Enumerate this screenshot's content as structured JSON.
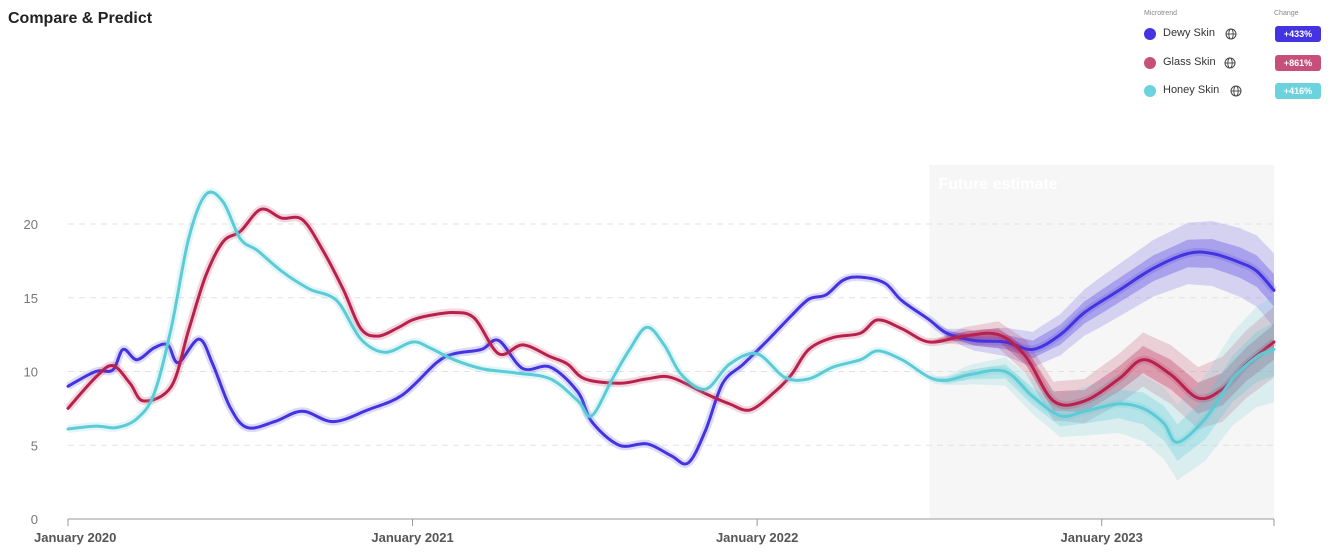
{
  "header": {
    "title": "Compare & Predict"
  },
  "legend": {
    "microtrend_heading": "Microtrend",
    "change_heading": "Change",
    "items": [
      {
        "name": "Dewy Skin",
        "change": "+433%",
        "color": "#4433e0",
        "icon": "globe-icon"
      },
      {
        "name": "Glass Skin",
        "change": "+861%",
        "color": "#c7507a",
        "icon": "globe-icon"
      },
      {
        "name": "Honey Skin",
        "change": "+416%",
        "color": "#6ad3dd",
        "icon": "globe-icon"
      }
    ]
  },
  "chart_data": {
    "type": "line",
    "title": "",
    "xlabel": "",
    "ylabel": "",
    "ylim": [
      0,
      23
    ],
    "xlim": [
      2020.0,
      2023.5
    ],
    "y_ticks": [
      0,
      5,
      10,
      15,
      20
    ],
    "x_ticks": [
      {
        "value": 2020.0,
        "label": "January 2020"
      },
      {
        "value": 2021.0,
        "label": "January 2021"
      },
      {
        "value": 2022.0,
        "label": "January 2022"
      },
      {
        "value": 2023.0,
        "label": "January 2023"
      }
    ],
    "grid": "horizontal-dashed",
    "future_region": {
      "start": 2022.5,
      "label": "Future estimate"
    },
    "series": [
      {
        "name": "Dewy Skin",
        "color": "#4433e0",
        "points": [
          [
            2020.0,
            9.0
          ],
          [
            2020.08,
            10.0
          ],
          [
            2020.13,
            10.1
          ],
          [
            2020.16,
            11.5
          ],
          [
            2020.2,
            10.8
          ],
          [
            2020.25,
            11.6
          ],
          [
            2020.29,
            11.8
          ],
          [
            2020.32,
            10.6
          ],
          [
            2020.38,
            12.2
          ],
          [
            2020.42,
            10.5
          ],
          [
            2020.47,
            7.6
          ],
          [
            2020.52,
            6.2
          ],
          [
            2020.6,
            6.6
          ],
          [
            2020.68,
            7.3
          ],
          [
            2020.77,
            6.6
          ],
          [
            2020.87,
            7.4
          ],
          [
            2020.97,
            8.4
          ],
          [
            2021.07,
            10.6
          ],
          [
            2021.12,
            11.2
          ],
          [
            2021.2,
            11.5
          ],
          [
            2021.25,
            12.1
          ],
          [
            2021.32,
            10.2
          ],
          [
            2021.4,
            10.3
          ],
          [
            2021.48,
            8.6
          ],
          [
            2021.52,
            6.6
          ],
          [
            2021.6,
            5.0
          ],
          [
            2021.68,
            5.1
          ],
          [
            2021.75,
            4.3
          ],
          [
            2021.8,
            3.8
          ],
          [
            2021.85,
            6.0
          ],
          [
            2021.9,
            9.2
          ],
          [
            2021.96,
            10.5
          ],
          [
            2022.03,
            12.1
          ],
          [
            2022.1,
            13.8
          ],
          [
            2022.15,
            14.9
          ],
          [
            2022.2,
            15.2
          ],
          [
            2022.25,
            16.2
          ],
          [
            2022.3,
            16.4
          ],
          [
            2022.37,
            16.0
          ],
          [
            2022.42,
            14.8
          ],
          [
            2022.5,
            13.5
          ],
          [
            2022.55,
            12.6
          ],
          [
            2022.63,
            12.1
          ],
          [
            2022.72,
            12.0
          ],
          [
            2022.8,
            11.5
          ],
          [
            2022.88,
            12.5
          ],
          [
            2022.95,
            14.0
          ],
          [
            2023.05,
            15.5
          ],
          [
            2023.15,
            17.0
          ],
          [
            2023.25,
            18.0
          ],
          [
            2023.32,
            18.0
          ],
          [
            2023.4,
            17.4
          ],
          [
            2023.45,
            16.8
          ],
          [
            2023.5,
            15.5
          ]
        ],
        "band_inner": [
          [
            2022.6,
            0.3
          ],
          [
            2022.8,
            0.6
          ],
          [
            2023.0,
            0.8
          ],
          [
            2023.2,
            0.9
          ],
          [
            2023.5,
            1.1
          ]
        ],
        "band_outer": [
          [
            2022.6,
            0.6
          ],
          [
            2022.8,
            1.2
          ],
          [
            2023.0,
            1.7
          ],
          [
            2023.2,
            2.0
          ],
          [
            2023.5,
            2.5
          ]
        ]
      },
      {
        "name": "Glass Skin",
        "color": "#b8214e",
        "points": [
          [
            2020.0,
            7.5
          ],
          [
            2020.08,
            9.6
          ],
          [
            2020.13,
            10.4
          ],
          [
            2020.18,
            9.2
          ],
          [
            2020.22,
            8.0
          ],
          [
            2020.3,
            9.0
          ],
          [
            2020.35,
            12.8
          ],
          [
            2020.4,
            16.5
          ],
          [
            2020.45,
            18.8
          ],
          [
            2020.5,
            19.5
          ],
          [
            2020.56,
            21.0
          ],
          [
            2020.62,
            20.4
          ],
          [
            2020.68,
            20.3
          ],
          [
            2020.74,
            18.2
          ],
          [
            2020.8,
            15.5
          ],
          [
            2020.85,
            12.9
          ],
          [
            2020.9,
            12.4
          ],
          [
            2020.96,
            13.0
          ],
          [
            2021.0,
            13.5
          ],
          [
            2021.05,
            13.8
          ],
          [
            2021.12,
            14.0
          ],
          [
            2021.18,
            13.6
          ],
          [
            2021.25,
            11.2
          ],
          [
            2021.32,
            11.8
          ],
          [
            2021.4,
            11.0
          ],
          [
            2021.45,
            10.5
          ],
          [
            2021.5,
            9.5
          ],
          [
            2021.6,
            9.2
          ],
          [
            2021.68,
            9.5
          ],
          [
            2021.75,
            9.6
          ],
          [
            2021.85,
            8.5
          ],
          [
            2021.92,
            7.8
          ],
          [
            2021.98,
            7.4
          ],
          [
            2022.05,
            8.6
          ],
          [
            2022.1,
            9.8
          ],
          [
            2022.15,
            11.5
          ],
          [
            2022.22,
            12.3
          ],
          [
            2022.3,
            12.6
          ],
          [
            2022.35,
            13.5
          ],
          [
            2022.42,
            12.9
          ],
          [
            2022.5,
            12.0
          ],
          [
            2022.6,
            12.4
          ],
          [
            2022.7,
            12.5
          ],
          [
            2022.78,
            11.0
          ],
          [
            2022.86,
            8.0
          ],
          [
            2022.95,
            8.0
          ],
          [
            2023.05,
            9.5
          ],
          [
            2023.12,
            10.8
          ],
          [
            2023.2,
            9.8
          ],
          [
            2023.28,
            8.2
          ],
          [
            2023.35,
            8.8
          ],
          [
            2023.42,
            10.5
          ],
          [
            2023.5,
            12.0
          ]
        ],
        "band_inner": [
          [
            2022.6,
            0.3
          ],
          [
            2022.8,
            0.6
          ],
          [
            2023.0,
            0.8
          ],
          [
            2023.2,
            1.0
          ],
          [
            2023.5,
            1.2
          ]
        ],
        "band_outer": [
          [
            2022.6,
            0.6
          ],
          [
            2022.8,
            1.2
          ],
          [
            2023.0,
            1.6
          ],
          [
            2023.2,
            2.0
          ],
          [
            2023.5,
            2.4
          ]
        ]
      },
      {
        "name": "Honey Skin",
        "color": "#5ccbd6",
        "points": [
          [
            2020.0,
            6.1
          ],
          [
            2020.08,
            6.3
          ],
          [
            2020.14,
            6.2
          ],
          [
            2020.2,
            6.8
          ],
          [
            2020.25,
            8.5
          ],
          [
            2020.3,
            13.0
          ],
          [
            2020.35,
            19.0
          ],
          [
            2020.4,
            22.0
          ],
          [
            2020.45,
            21.5
          ],
          [
            2020.5,
            19.0
          ],
          [
            2020.55,
            18.2
          ],
          [
            2020.62,
            16.8
          ],
          [
            2020.7,
            15.6
          ],
          [
            2020.78,
            14.8
          ],
          [
            2020.85,
            12.2
          ],
          [
            2020.92,
            11.3
          ],
          [
            2021.0,
            12.0
          ],
          [
            2021.05,
            11.6
          ],
          [
            2021.12,
            10.8
          ],
          [
            2021.2,
            10.2
          ],
          [
            2021.3,
            9.9
          ],
          [
            2021.4,
            9.5
          ],
          [
            2021.48,
            8.0
          ],
          [
            2021.52,
            7.0
          ],
          [
            2021.58,
            9.5
          ],
          [
            2021.63,
            11.5
          ],
          [
            2021.68,
            13.0
          ],
          [
            2021.73,
            11.8
          ],
          [
            2021.78,
            9.8
          ],
          [
            2021.85,
            8.8
          ],
          [
            2021.92,
            10.5
          ],
          [
            2022.0,
            11.2
          ],
          [
            2022.08,
            9.6
          ],
          [
            2022.15,
            9.5
          ],
          [
            2022.22,
            10.3
          ],
          [
            2022.3,
            10.8
          ],
          [
            2022.35,
            11.4
          ],
          [
            2022.42,
            10.8
          ],
          [
            2022.5,
            9.6
          ],
          [
            2022.55,
            9.4
          ],
          [
            2022.62,
            9.8
          ],
          [
            2022.72,
            10.0
          ],
          [
            2022.8,
            8.3
          ],
          [
            2022.88,
            7.0
          ],
          [
            2022.95,
            7.3
          ],
          [
            2023.05,
            7.8
          ],
          [
            2023.12,
            7.5
          ],
          [
            2023.18,
            6.5
          ],
          [
            2023.22,
            5.2
          ],
          [
            2023.3,
            6.8
          ],
          [
            2023.38,
            9.5
          ],
          [
            2023.45,
            11.0
          ],
          [
            2023.5,
            11.5
          ]
        ],
        "band_inner": [
          [
            2022.6,
            0.3
          ],
          [
            2022.8,
            0.6
          ],
          [
            2023.0,
            0.9
          ],
          [
            2023.2,
            1.2
          ],
          [
            2023.5,
            1.8
          ]
        ],
        "band_outer": [
          [
            2022.6,
            0.6
          ],
          [
            2022.8,
            1.2
          ],
          [
            2023.0,
            1.8
          ],
          [
            2023.2,
            2.5
          ],
          [
            2023.5,
            3.6
          ]
        ]
      }
    ]
  }
}
